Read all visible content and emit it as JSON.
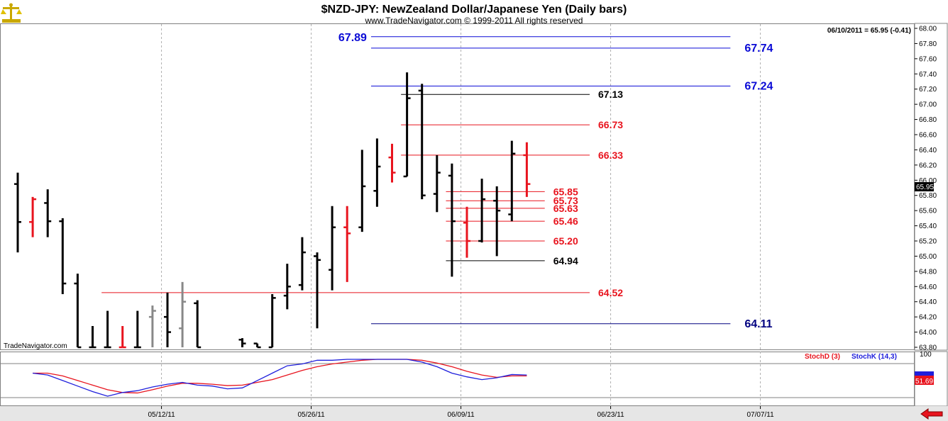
{
  "header": {
    "title": "$NZD-JPY:  NewZealand Dollar/Japanese Yen  (Daily bars)",
    "subtitle": "www.TradeNavigator.com © 1999-2011 All rights reserved",
    "last_quote": "06/10/2011 = 65.95 (-0.41)",
    "watermark": "TradeNavigator.com",
    "current_price_tag": "65.95",
    "stoch_value_tag": "51.69"
  },
  "colors": {
    "bar_up": "#000000",
    "bar_red": "#e8141e",
    "bar_gray": "#888888",
    "blue_level": "#0a0ad6",
    "navy_level": "#000080",
    "red_level": "#e8141e",
    "black_level": "#000000",
    "stoch_d": "#e8141e",
    "stoch_k": "#1e1edc"
  },
  "chart_data": [
    {
      "type": "ohlc",
      "ylim": [
        63.8,
        68.0
      ],
      "y_ticks": [
        "63.80",
        "64.00",
        "64.20",
        "64.40",
        "64.60",
        "64.80",
        "65.00",
        "65.20",
        "65.40",
        "65.60",
        "65.80",
        "66.00",
        "66.20",
        "66.40",
        "66.60",
        "66.80",
        "67.00",
        "67.20",
        "67.40",
        "67.60",
        "67.80",
        "68.00"
      ],
      "x_ticks": [
        "05/12/11",
        "05/26/11",
        "06/09/11",
        "06/23/11",
        "07/07/11"
      ],
      "bars": [
        {
          "i": 0,
          "o": 65.95,
          "h": 66.1,
          "l": 65.05,
          "c": 65.45,
          "color": "black"
        },
        {
          "i": 1,
          "o": 65.45,
          "h": 65.78,
          "l": 65.25,
          "c": 65.75,
          "color": "red"
        },
        {
          "i": 2,
          "o": 65.7,
          "h": 65.88,
          "l": 65.25,
          "c": 65.46,
          "color": "black"
        },
        {
          "i": 3,
          "o": 65.46,
          "h": 65.5,
          "l": 64.5,
          "c": 64.64,
          "color": "black"
        },
        {
          "i": 4,
          "o": 64.64,
          "h": 64.77,
          "l": 63.8,
          "c": 63.8,
          "color": "black"
        },
        {
          "i": 5,
          "o": 63.8,
          "h": 64.08,
          "l": 63.8,
          "c": 63.8,
          "color": "black"
        },
        {
          "i": 6,
          "o": 63.8,
          "h": 64.28,
          "l": 63.8,
          "c": 63.8,
          "color": "black"
        },
        {
          "i": 7,
          "o": 63.8,
          "h": 64.08,
          "l": 63.8,
          "c": 63.8,
          "color": "red"
        },
        {
          "i": 8,
          "o": 63.8,
          "h": 64.28,
          "l": 63.8,
          "c": 63.8,
          "color": "black"
        },
        {
          "i": 9,
          "o": 64.2,
          "h": 64.35,
          "l": 63.8,
          "c": 64.28,
          "color": "gray"
        },
        {
          "i": 10,
          "o": 64.2,
          "h": 64.52,
          "l": 63.8,
          "c": 64.0,
          "color": "black"
        },
        {
          "i": 11,
          "o": 64.05,
          "h": 64.66,
          "l": 63.8,
          "c": 64.4,
          "color": "gray"
        },
        {
          "i": 12,
          "o": 64.38,
          "h": 64.42,
          "l": 63.8,
          "c": 63.8,
          "color": "black"
        },
        {
          "i": 15,
          "o": 63.9,
          "h": 63.92,
          "l": 63.8,
          "c": 63.85,
          "color": "black"
        },
        {
          "i": 16,
          "o": 63.85,
          "h": 63.85,
          "l": 63.8,
          "c": 63.8,
          "color": "black"
        },
        {
          "i": 17,
          "o": 63.8,
          "h": 64.5,
          "l": 63.8,
          "c": 64.45,
          "color": "black"
        },
        {
          "i": 18,
          "o": 64.48,
          "h": 64.9,
          "l": 64.3,
          "c": 64.6,
          "color": "black"
        },
        {
          "i": 19,
          "o": 64.62,
          "h": 65.25,
          "l": 64.55,
          "c": 65.05,
          "color": "black"
        },
        {
          "i": 20,
          "o": 65.0,
          "h": 65.05,
          "l": 64.05,
          "c": 64.95,
          "color": "black"
        },
        {
          "i": 21,
          "o": 64.82,
          "h": 65.66,
          "l": 64.55,
          "c": 65.38,
          "color": "black"
        },
        {
          "i": 22,
          "o": 65.38,
          "h": 65.66,
          "l": 64.66,
          "c": 65.3,
          "color": "red"
        },
        {
          "i": 23,
          "o": 65.38,
          "h": 66.4,
          "l": 65.32,
          "c": 65.92,
          "color": "black"
        },
        {
          "i": 24,
          "o": 65.86,
          "h": 66.55,
          "l": 65.65,
          "c": 66.18,
          "color": "black"
        },
        {
          "i": 25,
          "o": 66.3,
          "h": 66.48,
          "l": 65.97,
          "c": 66.1,
          "color": "red"
        },
        {
          "i": 26,
          "o": 66.05,
          "h": 67.42,
          "l": 66.05,
          "c": 67.08,
          "color": "black"
        },
        {
          "i": 27,
          "o": 67.18,
          "h": 67.27,
          "l": 65.75,
          "c": 65.8,
          "color": "black"
        },
        {
          "i": 28,
          "o": 65.82,
          "h": 66.33,
          "l": 65.58,
          "c": 66.1,
          "color": "black"
        },
        {
          "i": 29,
          "o": 66.06,
          "h": 66.22,
          "l": 64.73,
          "c": 65.46,
          "color": "black"
        },
        {
          "i": 30,
          "o": 65.44,
          "h": 65.65,
          "l": 64.98,
          "c": 65.2,
          "color": "red"
        },
        {
          "i": 31,
          "o": 65.2,
          "h": 66.02,
          "l": 65.18,
          "c": 65.75,
          "color": "black"
        },
        {
          "i": 32,
          "o": 65.73,
          "h": 65.92,
          "l": 65.0,
          "c": 65.6,
          "color": "black"
        },
        {
          "i": 33,
          "o": 65.55,
          "h": 66.52,
          "l": 65.46,
          "c": 66.35,
          "color": "black"
        },
        {
          "i": 34,
          "o": 66.33,
          "h": 66.5,
          "l": 65.78,
          "c": 65.95,
          "color": "red"
        }
      ],
      "levels": [
        {
          "value": 67.89,
          "label": "67.89",
          "color": "blue",
          "from": 23.6,
          "to": 47.6,
          "label_side": "left"
        },
        {
          "value": 67.74,
          "label": "67.74",
          "color": "blue",
          "from": 23.6,
          "to": 47.6,
          "label_side": "right"
        },
        {
          "value": 67.24,
          "label": "67.24",
          "color": "blue",
          "from": 23.6,
          "to": 47.6,
          "label_side": "right"
        },
        {
          "value": 67.13,
          "label": "67.13",
          "color": "black",
          "from": 25.6,
          "to": 38.2,
          "label_side": "right"
        },
        {
          "value": 66.73,
          "label": "66.73",
          "color": "red",
          "from": 25.6,
          "to": 38.2,
          "label_side": "right"
        },
        {
          "value": 66.33,
          "label": "66.33",
          "color": "red",
          "from": 25.6,
          "to": 38.2,
          "label_side": "right"
        },
        {
          "value": 65.85,
          "label": "65.85",
          "color": "red",
          "from": 28.6,
          "to": 35.2,
          "label_side": "right"
        },
        {
          "value": 65.73,
          "label": "65.73",
          "color": "red",
          "from": 28.6,
          "to": 35.2,
          "label_side": "right"
        },
        {
          "value": 65.63,
          "label": "65.63",
          "color": "red",
          "from": 28.6,
          "to": 35.2,
          "label_side": "right"
        },
        {
          "value": 65.46,
          "label": "65.46",
          "color": "red",
          "from": 28.6,
          "to": 35.2,
          "label_side": "right"
        },
        {
          "value": 65.2,
          "label": "65.20",
          "color": "red",
          "from": 28.6,
          "to": 35.2,
          "label_side": "right"
        },
        {
          "value": 64.94,
          "label": "64.94",
          "color": "black",
          "from": 28.6,
          "to": 35.2,
          "label_side": "right"
        },
        {
          "value": 64.52,
          "label": "64.52",
          "color": "red",
          "from": 5.6,
          "to": 38.2,
          "label_side": "right"
        },
        {
          "value": 64.11,
          "label": "64.11",
          "color": "navy",
          "from": 23.6,
          "to": 47.6,
          "label_side": "right"
        }
      ]
    },
    {
      "type": "line",
      "ylim": [
        0,
        100
      ],
      "y_ticks": [
        "100"
      ],
      "series": [
        {
          "name": "StochD (3)",
          "color": "red",
          "x": [
            1,
            2,
            3,
            4,
            5,
            6,
            7,
            8,
            9,
            10,
            11,
            12,
            13,
            14,
            15,
            16,
            17,
            18,
            19,
            20,
            21,
            22,
            23,
            24,
            25,
            26,
            27,
            28,
            29,
            30,
            31,
            32,
            33,
            34
          ],
          "values": [
            70,
            70,
            64,
            54,
            44,
            34,
            28,
            27,
            34,
            42,
            48,
            48,
            46,
            43,
            44,
            50,
            56,
            66,
            76,
            84,
            90,
            94,
            98,
            100,
            100,
            100,
            98,
            92,
            84,
            74,
            66,
            61,
            64,
            64
          ]
        },
        {
          "name": "StochK (14,3)",
          "color": "blue",
          "x": [
            1,
            2,
            3,
            4,
            5,
            6,
            7,
            8,
            9,
            10,
            11,
            12,
            13,
            14,
            15,
            16,
            17,
            18,
            19,
            20,
            21,
            22,
            23,
            24,
            25,
            26,
            27,
            28,
            29,
            30,
            31,
            32,
            33,
            34
          ],
          "values": [
            70,
            66,
            54,
            42,
            30,
            20,
            28,
            32,
            40,
            46,
            50,
            44,
            42,
            36,
            38,
            54,
            70,
            86,
            90,
            98,
            98,
            100,
            100,
            100,
            100,
            100,
            94,
            84,
            70,
            62,
            56,
            60,
            67,
            66
          ]
        }
      ]
    }
  ]
}
